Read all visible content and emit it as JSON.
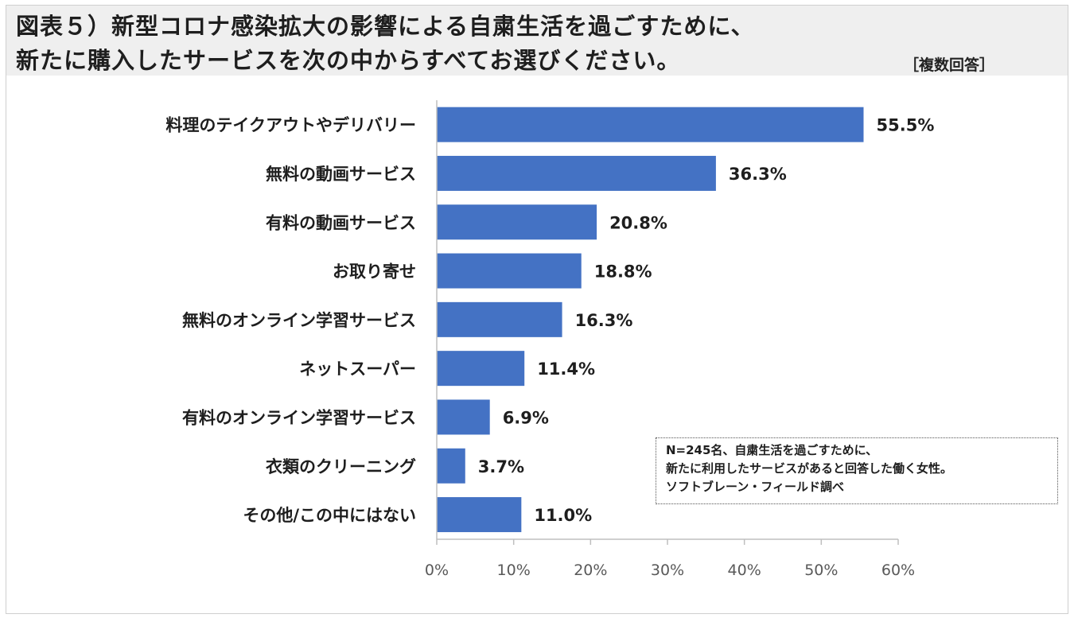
{
  "header": {
    "title_line1": "図表５）新型コロナ感染拡大の影響による自粛生活を過ごすために、",
    "title_line2": "新たに購入したサービスを次の中からすべてお選びください。",
    "answer_type": "［複数回答］"
  },
  "note": {
    "line1": "N=245名、自粛生活を過ごすために、",
    "line2": "新たに利用したサービスがあると回答した働く女性。",
    "line3": "ソフトブレーン・フィールド調べ"
  },
  "chart_data": {
    "type": "bar",
    "orientation": "horizontal",
    "categories": [
      "料理のテイクアウトやデリバリー",
      "無料の動画サービス",
      "有料の動画サービス",
      "お取り寄せ",
      "無料のオンライン学習サービス",
      "ネットスーパー",
      "有料のオンライン学習サービス",
      "衣類のクリーニング",
      "その他/この中にはない"
    ],
    "values": [
      55.5,
      36.3,
      20.8,
      18.8,
      16.3,
      11.4,
      6.9,
      3.7,
      11.0
    ],
    "value_labels": [
      "55.5%",
      "36.3%",
      "20.8%",
      "18.8%",
      "16.3%",
      "11.4%",
      "6.9%",
      "3.7%",
      "11.0%"
    ],
    "x_ticks": [
      "0%",
      "10%",
      "20%",
      "30%",
      "40%",
      "50%",
      "60%"
    ],
    "xlim": [
      0,
      60
    ],
    "bar_color": "#4472c4",
    "grid": false,
    "legend": "none"
  }
}
